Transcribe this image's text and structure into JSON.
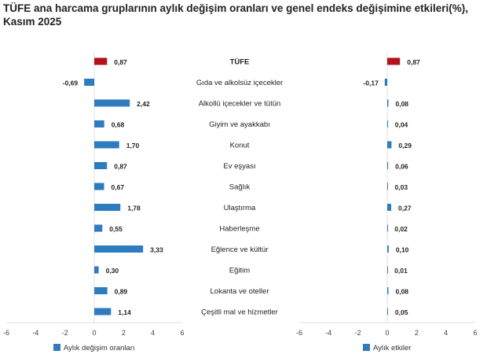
{
  "chart_data": [
    {
      "type": "bar",
      "orientation": "horizontal",
      "title": "TÜFE ana harcama gruplarının aylık değişim oranları ve genel endeks değişimine etkileri(%), Kasım 2025",
      "categories": [
        "TÜFE",
        "Gıda ve alkolsüz içecekler",
        "Alkollü içecekler ve tütün",
        "Giyim ve ayakkabı",
        "Konut",
        "Ev eşyası",
        "Sağlık",
        "Ulaştırma",
        "Haberleşme",
        "Eğlence ve kültür",
        "Eğitim",
        "Lokanta ve oteller",
        "Çeşitli mal ve hizmetler"
      ],
      "series": [
        {
          "name": "Aylık değişim oranları",
          "values": [
            0.87,
            -0.69,
            2.42,
            0.68,
            1.7,
            0.87,
            0.67,
            1.78,
            0.55,
            3.33,
            0.3,
            0.89,
            1.14
          ]
        }
      ],
      "labels": [
        "0,87",
        "-0,69",
        "2,42",
        "0,68",
        "1,70",
        "0,87",
        "0,67",
        "1,78",
        "0,55",
        "3,33",
        "0,30",
        "0,89",
        "1,14"
      ],
      "xlim": [
        -6,
        6
      ],
      "xticks": [
        "-6",
        "-4",
        "-2",
        "0",
        "2",
        "4",
        "6"
      ],
      "legend": "bottom",
      "colors": {
        "highlight": "#b5121b",
        "series": "#2e7bbf"
      }
    },
    {
      "type": "bar",
      "orientation": "horizontal",
      "series": [
        {
          "name": "Aylık etkiler",
          "values": [
            0.87,
            -0.17,
            0.08,
            0.04,
            0.29,
            0.06,
            0.03,
            0.27,
            0.02,
            0.1,
            0.01,
            0.08,
            0.05
          ]
        }
      ],
      "labels": [
        "0,87",
        "-0,17",
        "0,08",
        "0,04",
        "0,29",
        "0,06",
        "0,03",
        "0,27",
        "0,02",
        "0,10",
        "0,01",
        "0,08",
        "0,05"
      ],
      "xlim": [
        -6,
        6
      ],
      "xticks": [
        "-6",
        "-4",
        "-2",
        "0",
        "2",
        "4",
        "6"
      ],
      "legend": "bottom",
      "colors": {
        "highlight": "#b5121b",
        "series": "#2e7bbf"
      }
    }
  ]
}
